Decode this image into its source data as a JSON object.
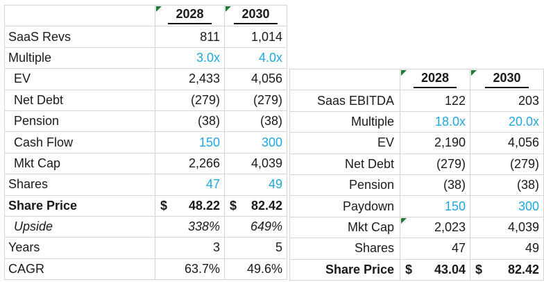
{
  "colors": {
    "accent_blue": "#1FA7E0",
    "flag_green": "#1E7B34",
    "grid_line": "#D5D5D5",
    "text": "#1A1A1A"
  },
  "left_table": {
    "columns": [
      "2028",
      "2030"
    ],
    "header_flags": [
      true,
      true
    ],
    "rows": [
      {
        "label": "SaaS Revs",
        "values": [
          "811",
          "1,014"
        ]
      },
      {
        "label": "Multiple",
        "values": [
          "3.0x",
          "4.0x"
        ],
        "blue": true
      },
      {
        "label": "EV",
        "values": [
          "2,433",
          "4,056"
        ],
        "indent": true
      },
      {
        "label": "Net Debt",
        "values": [
          "(279)",
          "(279)"
        ],
        "indent": true
      },
      {
        "label": "Pension",
        "values": [
          "(38)",
          "(38)"
        ],
        "indent": true
      },
      {
        "label": "Cash Flow",
        "values": [
          "150",
          "300"
        ],
        "blue": true,
        "indent": true
      },
      {
        "label": "Mkt Cap",
        "values": [
          "2,266",
          "4,039"
        ],
        "indent": true
      },
      {
        "label": "Shares",
        "values": [
          "47",
          "49"
        ],
        "blue": true
      },
      {
        "label": "Share Price",
        "values": [
          "48.22",
          "82.42"
        ],
        "currency": "$",
        "bold": true
      },
      {
        "label": "Upside",
        "values": [
          "338%",
          "649%"
        ],
        "italic": true,
        "indent": true
      },
      {
        "label": "Years",
        "values": [
          "3",
          "5"
        ]
      },
      {
        "label": "CAGR",
        "values": [
          "63.7%",
          "49.6%"
        ]
      }
    ]
  },
  "right_table": {
    "columns": [
      "2028",
      "2030"
    ],
    "header_flags": [
      true,
      true
    ],
    "rows": [
      {
        "label": "Saas EBITDA",
        "values": [
          "122",
          "203"
        ]
      },
      {
        "label": "Multiple",
        "values": [
          "18.0x",
          "20.0x"
        ],
        "blue": true
      },
      {
        "label": "EV",
        "values": [
          "2,190",
          "4,056"
        ]
      },
      {
        "label": "Net Debt",
        "values": [
          "(279)",
          "(279)"
        ]
      },
      {
        "label": "Pension",
        "values": [
          "(38)",
          "(38)"
        ]
      },
      {
        "label": "Paydown",
        "values": [
          "150",
          "300"
        ],
        "blue": true
      },
      {
        "label": "Mkt Cap",
        "values": [
          "2,023",
          "4,039"
        ],
        "flags": [
          true,
          false
        ]
      },
      {
        "label": "Shares",
        "values": [
          "47",
          "49"
        ]
      },
      {
        "label": "Share Price",
        "values": [
          "43.04",
          "82.42"
        ],
        "currency": "$",
        "bold": true
      }
    ]
  }
}
